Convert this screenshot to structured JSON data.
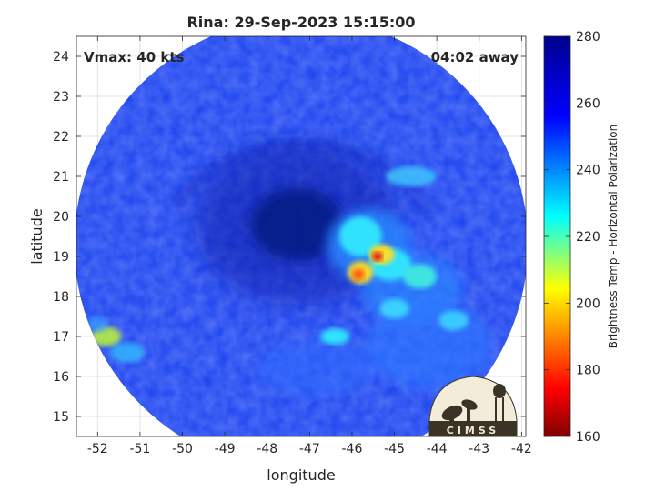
{
  "title": "Rina: 29-Sep-2023 15:15:00",
  "vmax_label": "Vmax: 40 kts",
  "away_label": "04:02 away",
  "xlabel": "longitude",
  "ylabel": "latitude",
  "colorbar_label": "Brightness Temp - Horizontal Polarization",
  "logo_text": "CIMSS",
  "map_data": {
    "lon_range": [
      -52.5,
      -41.9
    ],
    "lat_range": [
      14.5,
      24.5
    ],
    "lon_ticks": [
      -52,
      -51,
      -50,
      -49,
      -48,
      -47,
      -46,
      -45,
      -44,
      -43,
      -42
    ],
    "lat_ticks": [
      15,
      16,
      17,
      18,
      19,
      20,
      21,
      22,
      23,
      24
    ],
    "swath_center": [
      -47.2,
      19.3
    ],
    "swath_radius_deg": 5.35,
    "storm_center": [
      -47.3,
      19.8
    ],
    "warm_core": [
      -45.4,
      19.0
    ],
    "grid": true,
    "colorbar": {
      "min": 160,
      "max": 280,
      "ticks": [
        160,
        180,
        200,
        220,
        240,
        260,
        280
      ],
      "colormap": [
        "#800000",
        "#ff0000",
        "#ffff00",
        "#00ffff",
        "#0000ff",
        "#00008f"
      ]
    }
  }
}
